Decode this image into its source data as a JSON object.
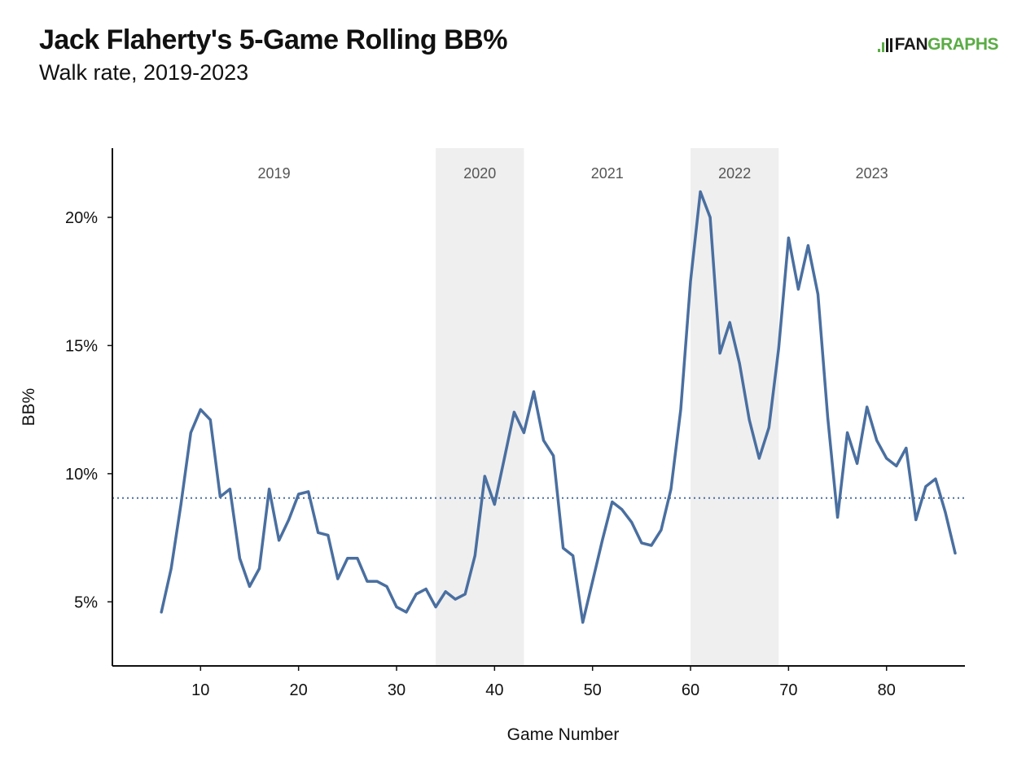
{
  "header": {
    "title": "Jack Flaherty's 5-Game Rolling BB%",
    "subtitle": "Walk rate, 2019-2023"
  },
  "logo": {
    "part1": "FAN",
    "part2": "GRAPHS"
  },
  "colors": {
    "line": "#4a6fa0",
    "reference": "#4a6fa0",
    "shade": "#efefef",
    "logo_green": "#5aac44"
  },
  "chart_data": {
    "type": "line",
    "title": "Jack Flaherty's 5-Game Rolling BB%",
    "subtitle": "Walk rate, 2019-2023",
    "xlabel": "Game Number",
    "ylabel": "BB%",
    "xlim": [
      1,
      88
    ],
    "ylim": [
      0.025,
      0.227
    ],
    "xticks": [
      10,
      20,
      30,
      40,
      50,
      60,
      70,
      80
    ],
    "yticks": [
      0.05,
      0.1,
      0.15,
      0.2
    ],
    "ytick_labels": [
      "5%",
      "10%",
      "15%",
      "20%"
    ],
    "reference_line": {
      "value": 0.0905,
      "style": "dotted"
    },
    "grid": false,
    "legend": "none",
    "seasons": [
      {
        "label": "2019",
        "start": 1,
        "end": 34,
        "shaded": false
      },
      {
        "label": "2020",
        "start": 34,
        "end": 43,
        "shaded": true
      },
      {
        "label": "2021",
        "start": 43,
        "end": 60,
        "shaded": false
      },
      {
        "label": "2022",
        "start": 60,
        "end": 69,
        "shaded": true
      },
      {
        "label": "2023",
        "start": 69,
        "end": 88,
        "shaded": false
      }
    ],
    "series": [
      {
        "x": [
          6,
          7,
          8,
          9,
          10,
          11,
          12,
          13,
          14,
          15,
          16,
          17,
          18,
          19,
          20,
          21,
          22,
          23,
          24,
          25,
          26,
          27,
          28,
          29,
          30,
          31,
          32,
          33,
          34,
          35,
          36,
          37,
          38,
          39,
          40,
          41,
          42,
          43,
          44,
          45,
          46,
          47,
          48,
          49,
          50,
          51,
          52,
          53,
          54,
          55,
          56,
          57,
          58,
          59,
          60,
          61,
          62,
          63,
          64,
          65,
          66,
          67,
          68,
          69,
          70,
          71,
          72,
          73,
          74,
          75,
          76,
          77,
          78,
          79,
          80,
          81,
          82,
          83,
          84,
          85,
          86,
          87
        ],
        "y": [
          0.046,
          0.063,
          0.088,
          0.116,
          0.125,
          0.121,
          0.091,
          0.094,
          0.067,
          0.056,
          0.063,
          0.094,
          0.074,
          0.082,
          0.092,
          0.093,
          0.077,
          0.076,
          0.059,
          0.067,
          0.067,
          0.058,
          0.058,
          0.056,
          0.048,
          0.046,
          0.053,
          0.055,
          0.048,
          0.054,
          0.051,
          0.053,
          0.068,
          0.099,
          0.088,
          0.106,
          0.124,
          0.116,
          0.132,
          0.113,
          0.107,
          0.071,
          0.068,
          0.042,
          0.058,
          0.074,
          0.089,
          0.086,
          0.081,
          0.073,
          0.072,
          0.078,
          0.094,
          0.125,
          0.175,
          0.21,
          0.2,
          0.147,
          0.159,
          0.143,
          0.121,
          0.106,
          0.118,
          0.149,
          0.192,
          0.172,
          0.189,
          0.17,
          0.122,
          0.083,
          0.116,
          0.104,
          0.126,
          0.113,
          0.106,
          0.103,
          0.11,
          0.082,
          0.095,
          0.098,
          0.085,
          0.069
        ]
      }
    ]
  }
}
